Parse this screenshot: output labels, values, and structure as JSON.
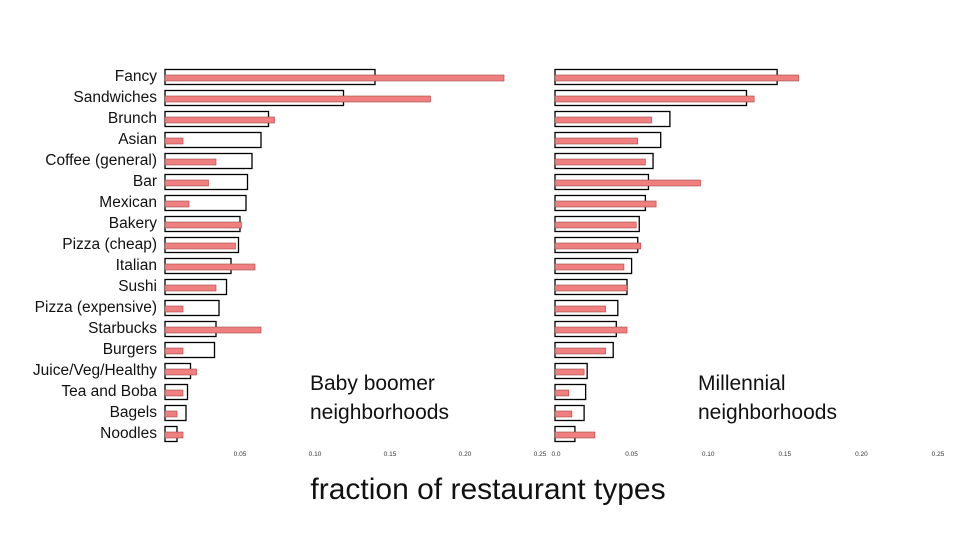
{
  "chart_data": {
    "type": "bar",
    "orientation": "horizontal",
    "xlabel": "fraction of restaurant types",
    "categories": [
      "Fancy",
      "Sandwiches",
      "Brunch",
      "Asian",
      "Coffee (general)",
      "Bar",
      "Mexican",
      "Bakery",
      "Pizza (cheap)",
      "Italian",
      "Sushi",
      "Pizza (expensive)",
      "Starbucks",
      "Burgers",
      "Juice/Veg/Healthy",
      "Tea and Boba",
      "Bagels",
      "Noodles"
    ],
    "xlim": [
      0,
      0.25
    ],
    "xticks": [
      "0.05",
      "0.10",
      "0.15",
      "0.20",
      "0.25"
    ],
    "panels": [
      {
        "label_lines": [
          "Baby boomer",
          "neighborhoods"
        ],
        "tick_zero_label": "",
        "series": [
          {
            "style": "outline",
            "color": "#000000",
            "values": [
              0.14,
              0.119,
              0.069,
              0.064,
              0.058,
              0.055,
              0.054,
              0.05,
              0.049,
              0.044,
              0.041,
              0.036,
              0.034,
              0.033,
              0.017,
              0.015,
              0.014,
              0.008
            ]
          },
          {
            "style": "filled",
            "color": "#f08080",
            "values": [
              0.226,
              0.177,
              0.073,
              0.012,
              0.034,
              0.029,
              0.016,
              0.051,
              0.047,
              0.06,
              0.034,
              0.012,
              0.064,
              0.012,
              0.021,
              0.012,
              0.008,
              0.012
            ]
          }
        ]
      },
      {
        "label_lines": [
          "Millennial",
          "neighborhoods"
        ],
        "tick_zero_label": "0.0",
        "series": [
          {
            "style": "outline",
            "color": "#000000",
            "values": [
              0.145,
              0.125,
              0.075,
              0.069,
              0.064,
              0.061,
              0.059,
              0.055,
              0.054,
              0.05,
              0.047,
              0.041,
              0.04,
              0.038,
              0.021,
              0.02,
              0.019,
              0.013
            ]
          },
          {
            "style": "filled",
            "color": "#f08080",
            "values": [
              0.159,
              0.13,
              0.063,
              0.054,
              0.059,
              0.095,
              0.066,
              0.053,
              0.056,
              0.045,
              0.047,
              0.033,
              0.047,
              0.033,
              0.019,
              0.009,
              0.011,
              0.026
            ]
          }
        ]
      }
    ]
  }
}
